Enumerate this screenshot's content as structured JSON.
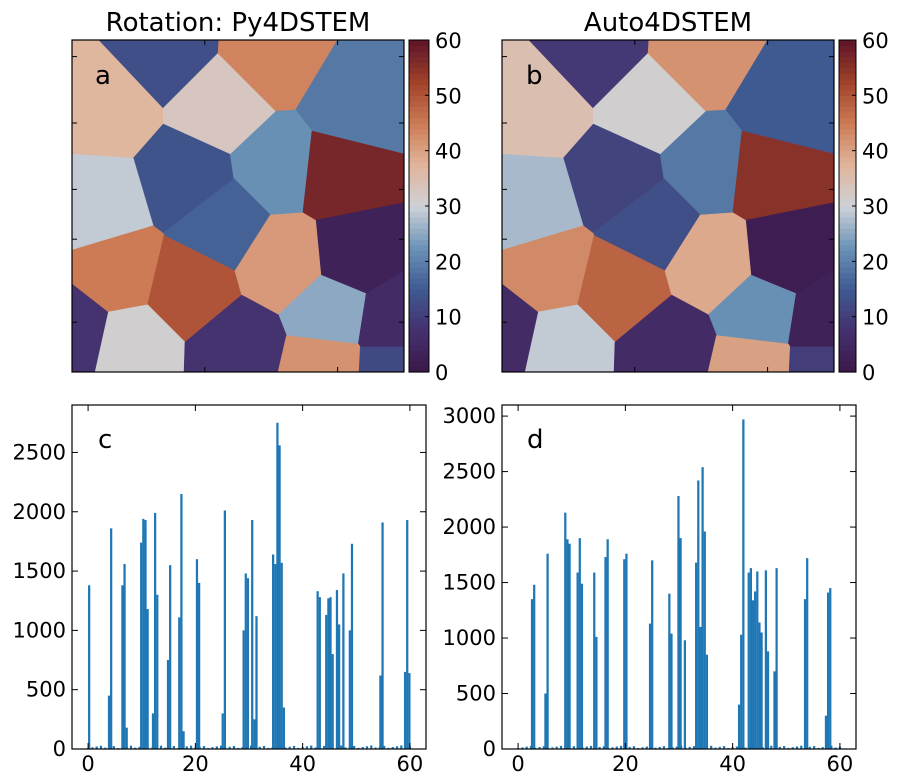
{
  "colors": {
    "bar": "#1f77b4",
    "colormap": [
      "#3b1848",
      "#45306e",
      "#3f5a91",
      "#6b93b7",
      "#cfd2d8",
      "#e0b49a",
      "#cc7b55",
      "#a0412a",
      "#5c1428"
    ]
  },
  "chart_data": [
    {
      "type": "heatmap",
      "panel": "a",
      "title": "Rotation: Py4DSTEM",
      "colorbar": {
        "range": [
          0,
          60
        ],
        "ticks": [
          "0",
          "10",
          "20",
          "30",
          "40",
          "50",
          "60"
        ]
      },
      "grains": [
        {
          "value": 37,
          "center": [
            0.1,
            0.2
          ]
        },
        {
          "value": 13,
          "center": [
            0.28,
            0.03
          ]
        },
        {
          "value": 33,
          "center": [
            0.45,
            0.2
          ]
        },
        {
          "value": 44,
          "center": [
            0.6,
            0.05
          ]
        },
        {
          "value": 19,
          "center": [
            0.85,
            0.2
          ]
        },
        {
          "value": 14,
          "center": [
            0.35,
            0.42
          ]
        },
        {
          "value": 22,
          "center": [
            0.62,
            0.38
          ]
        },
        {
          "value": 57,
          "center": [
            0.8,
            0.4
          ]
        },
        {
          "value": 29,
          "center": [
            0.08,
            0.5
          ]
        },
        {
          "value": 16,
          "center": [
            0.45,
            0.55
          ]
        },
        {
          "value": 3,
          "center": [
            0.85,
            0.65
          ]
        },
        {
          "value": 45,
          "center": [
            0.14,
            0.7
          ]
        },
        {
          "value": 50,
          "center": [
            0.35,
            0.75
          ]
        },
        {
          "value": 41,
          "center": [
            0.64,
            0.67
          ]
        },
        {
          "value": 25,
          "center": [
            0.78,
            0.82
          ]
        },
        {
          "value": 6,
          "center": [
            0.97,
            0.85
          ]
        },
        {
          "value": 31,
          "center": [
            0.18,
            0.92
          ]
        },
        {
          "value": 8,
          "center": [
            0.5,
            0.93
          ]
        },
        {
          "value": 42,
          "center": [
            0.76,
            0.99
          ]
        },
        {
          "value": 12,
          "center": [
            0.97,
            1.0
          ]
        },
        {
          "value": 8,
          "center": [
            0.0,
            0.88
          ]
        }
      ]
    },
    {
      "type": "heatmap",
      "panel": "b",
      "title": "Auto4DSTEM",
      "colorbar": {
        "range": [
          0,
          60
        ],
        "ticks": [
          "0",
          "10",
          "20",
          "30",
          "40",
          "50",
          "60"
        ]
      },
      "grains": [
        {
          "value": 35,
          "center": [
            0.1,
            0.2
          ]
        },
        {
          "value": 9,
          "center": [
            0.28,
            0.03
          ]
        },
        {
          "value": 31,
          "center": [
            0.45,
            0.2
          ]
        },
        {
          "value": 42,
          "center": [
            0.6,
            0.05
          ]
        },
        {
          "value": 15,
          "center": [
            0.85,
            0.2
          ]
        },
        {
          "value": 11,
          "center": [
            0.35,
            0.42
          ]
        },
        {
          "value": 19,
          "center": [
            0.62,
            0.38
          ]
        },
        {
          "value": 55,
          "center": [
            0.8,
            0.4
          ]
        },
        {
          "value": 27,
          "center": [
            0.08,
            0.5
          ]
        },
        {
          "value": 13,
          "center": [
            0.45,
            0.55
          ]
        },
        {
          "value": 2,
          "center": [
            0.85,
            0.65
          ]
        },
        {
          "value": 43,
          "center": [
            0.14,
            0.7
          ]
        },
        {
          "value": 48,
          "center": [
            0.35,
            0.75
          ]
        },
        {
          "value": 39,
          "center": [
            0.64,
            0.67
          ]
        },
        {
          "value": 22,
          "center": [
            0.78,
            0.82
          ]
        },
        {
          "value": 3,
          "center": [
            0.97,
            0.85
          ]
        },
        {
          "value": 29,
          "center": [
            0.18,
            0.92
          ]
        },
        {
          "value": 6,
          "center": [
            0.5,
            0.93
          ]
        },
        {
          "value": 40,
          "center": [
            0.76,
            0.99
          ]
        },
        {
          "value": 10,
          "center": [
            0.97,
            1.0
          ]
        },
        {
          "value": 6,
          "center": [
            0.0,
            0.88
          ]
        }
      ]
    },
    {
      "type": "bar",
      "panel": "c",
      "xlim": [
        -3,
        63
      ],
      "ylim": [
        0,
        2900
      ],
      "xticks": [
        0,
        20,
        40,
        60
      ],
      "yticks": [
        0,
        500,
        1000,
        1500,
        2000,
        2500
      ],
      "x": [
        0.2,
        3.9,
        4.3,
        6.4,
        6.8,
        7.2,
        9.9,
        10.3,
        10.7,
        11.1,
        12.1,
        12.5,
        12.9,
        14.9,
        15.3,
        17.0,
        17.4,
        17.8,
        20.3,
        20.7,
        25.1,
        25.5,
        29.0,
        29.4,
        29.8,
        30.6,
        31.0,
        31.4,
        34.5,
        34.9,
        35.3,
        35.7,
        36.1,
        36.5,
        42.8,
        43.2,
        44.4,
        44.8,
        45.2,
        45.6,
        46.4,
        46.8,
        47.6,
        48.8,
        49.2,
        54.5,
        54.9,
        59.1,
        59.5,
        59.9
      ],
      "values": [
        1380,
        450,
        1860,
        1380,
        1560,
        180,
        1740,
        1940,
        1930,
        1180,
        300,
        1990,
        1300,
        750,
        1550,
        1110,
        2150,
        150,
        1600,
        1400,
        300,
        2010,
        1000,
        1480,
        1440,
        1930,
        250,
        1120,
        1640,
        1560,
        2750,
        2560,
        1570,
        350,
        1330,
        1280,
        1130,
        1270,
        1280,
        800,
        1340,
        1050,
        1480,
        1000,
        1730,
        620,
        1910,
        650,
        1930,
        640
      ]
    },
    {
      "type": "bar",
      "panel": "d",
      "xlim": [
        -3,
        63
      ],
      "ylim": [
        0,
        3100
      ],
      "xticks": [
        0,
        20,
        40,
        60
      ],
      "yticks": [
        0,
        500,
        1000,
        1500,
        2000,
        2500,
        3000
      ],
      "x": [
        2.6,
        3.0,
        5.1,
        5.5,
        8.8,
        9.2,
        9.6,
        11.1,
        11.5,
        11.9,
        14.2,
        14.6,
        16.3,
        16.7,
        19.8,
        20.2,
        24.6,
        25.0,
        28.2,
        28.6,
        29.9,
        30.3,
        31.1,
        33.2,
        33.6,
        34.0,
        34.4,
        34.8,
        35.2,
        41.2,
        41.6,
        42.0,
        43.0,
        43.4,
        43.8,
        44.2,
        44.6,
        45.0,
        45.4,
        46.2,
        46.6,
        47.8,
        48.2,
        53.5,
        53.9,
        57.4,
        57.8,
        58.2
      ],
      "values": [
        1350,
        1480,
        500,
        1760,
        2130,
        1890,
        1850,
        1590,
        1900,
        1490,
        1590,
        1010,
        1730,
        1890,
        1710,
        1760,
        1130,
        1700,
        1400,
        1040,
        2280,
        1900,
        980,
        1680,
        2420,
        1100,
        2540,
        1960,
        850,
        400,
        1030,
        2970,
        1590,
        1630,
        1340,
        1420,
        1600,
        1140,
        1050,
        1610,
        880,
        700,
        1630,
        1350,
        1720,
        300,
        1410,
        1450
      ]
    }
  ],
  "panel_labels": {
    "a": "a",
    "b": "b",
    "c": "c",
    "d": "d"
  }
}
